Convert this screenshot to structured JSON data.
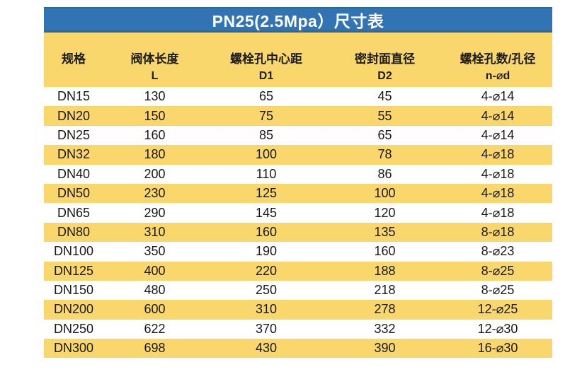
{
  "title": "PN25(2.5Mpa）尺寸表",
  "table": {
    "headers": [
      {
        "label": "规格",
        "symbol": ""
      },
      {
        "label": "阀体长度",
        "symbol": "L"
      },
      {
        "label": "螺栓孔中心距",
        "symbol": "D1"
      },
      {
        "label": "密封面直径",
        "symbol": "D2"
      },
      {
        "label": "螺栓孔数/孔径",
        "symbol": "n-⌀d"
      }
    ],
    "rows": [
      [
        "DN15",
        "130",
        "65",
        "45",
        "4-⌀14"
      ],
      [
        "DN20",
        "150",
        "75",
        "55",
        "4-⌀14"
      ],
      [
        "DN25",
        "160",
        "85",
        "65",
        "4-⌀14"
      ],
      [
        "DN32",
        "180",
        "100",
        "78",
        "4-⌀18"
      ],
      [
        "DN40",
        "200",
        "110",
        "86",
        "4-⌀18"
      ],
      [
        "DN50",
        "230",
        "125",
        "100",
        "4-⌀18"
      ],
      [
        "DN65",
        "290",
        "145",
        "120",
        "4-⌀18"
      ],
      [
        "DN80",
        "310",
        "160",
        "135",
        "8-⌀18"
      ],
      [
        "DN100",
        "350",
        "190",
        "160",
        "8-⌀23"
      ],
      [
        "DN125",
        "400",
        "220",
        "188",
        "8-⌀25"
      ],
      [
        "DN150",
        "480",
        "250",
        "218",
        "8-⌀25"
      ],
      [
        "DN200",
        "600",
        "310",
        "278",
        "12-⌀25"
      ],
      [
        "DN250",
        "622",
        "370",
        "332",
        "12-⌀30"
      ],
      [
        "DN300",
        "698",
        "430",
        "390",
        "16-⌀30"
      ]
    ]
  },
  "colors": {
    "title_background": "#3173B3",
    "title_border": "#2E6B94",
    "title_text": "#FFFFFF",
    "row_yellow": "#F9D76C",
    "row_white": "#FFFFFF",
    "text": "#191919"
  }
}
